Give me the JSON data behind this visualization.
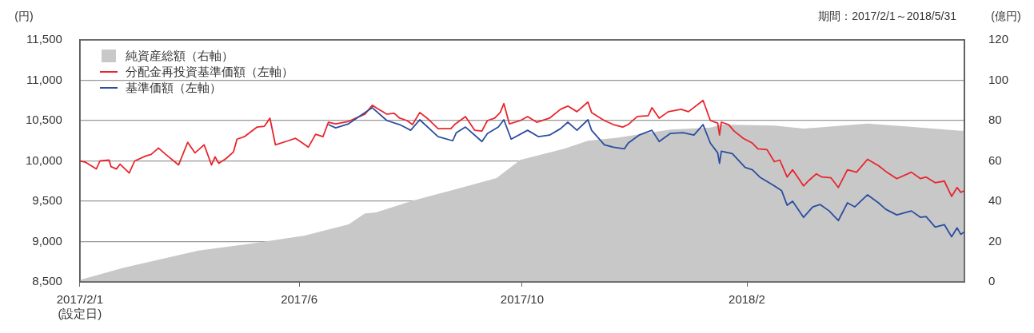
{
  "chart_data": {
    "type": "line",
    "ylabel": "(円)",
    "y2label": "(億円)",
    "annotations": [
      "期間：2017/2/1～2018/5/31"
    ],
    "xlim": [
      "2017-02-01",
      "2018-05-31"
    ],
    "xticks": [
      {
        "value": "2017-02-01",
        "label": "2017/2/1\n(設定日)"
      },
      {
        "value": "2017-06-01",
        "label": "2017/6"
      },
      {
        "value": "2017-10-01",
        "label": "2017/10"
      },
      {
        "value": "2018-02-01",
        "label": "2018/2"
      }
    ],
    "ylim": [
      8500,
      11500
    ],
    "yticks": [
      {
        "value": 8500,
        "label": "8,500"
      },
      {
        "value": 9000,
        "label": "9,000"
      },
      {
        "value": 9500,
        "label": "9,500"
      },
      {
        "value": 10000,
        "label": "10,000"
      },
      {
        "value": 10500,
        "label": "10,500"
      },
      {
        "value": 11000,
        "label": "11,000"
      },
      {
        "value": 11500,
        "label": "11,500"
      }
    ],
    "y2lim": [
      0,
      120
    ],
    "y2ticks": [
      0,
      20,
      40,
      60,
      80,
      100,
      120
    ],
    "grid": "y",
    "legend": "top left",
    "series": [
      {
        "name": "純資産総額（右軸）",
        "type": "area",
        "axis": "y2",
        "color": "#c8c8c8",
        "x": [
          "2017-02-01",
          "2017-02-25",
          "2017-04-07",
          "2017-05-06",
          "2017-06-04",
          "2017-06-28",
          "2017-07-07",
          "2017-07-13",
          "2017-08-03",
          "2017-08-26",
          "2017-09-17",
          "2017-09-30",
          "2017-10-24",
          "2017-11-06",
          "2017-11-22",
          "2017-12-21",
          "2018-01-12",
          "2018-01-18",
          "2018-02-16",
          "2018-03-04",
          "2018-04-08",
          "2018-04-30",
          "2018-05-29",
          "2018-05-31"
        ],
        "values": [
          1,
          7,
          15.5,
          19,
          23,
          28.5,
          34,
          34.5,
          40.5,
          46,
          51.5,
          60.5,
          66,
          70,
          71.5,
          75.5,
          76.5,
          78,
          77.5,
          76,
          78.5,
          77,
          75,
          75
        ]
      },
      {
        "name": "分配金再投資基準価額（左軸）",
        "color": "#e8262d",
        "x": [
          "2017-02-01",
          "2017-02-04",
          "2017-02-10",
          "2017-02-12",
          "2017-02-17",
          "2017-02-18",
          "2017-02-21",
          "2017-02-23",
          "2017-02-28",
          "2017-03-03",
          "2017-03-09",
          "2017-03-12",
          "2017-03-16",
          "2017-03-20",
          "2017-03-27",
          "2017-04-01",
          "2017-04-05",
          "2017-04-10",
          "2017-04-14",
          "2017-04-16",
          "2017-04-18",
          "2017-04-22",
          "2017-04-26",
          "2017-04-28",
          "2017-05-02",
          "2017-05-09",
          "2017-05-13",
          "2017-05-16",
          "2017-05-19",
          "2017-05-26",
          "2017-05-30",
          "2017-06-01",
          "2017-06-06",
          "2017-06-10",
          "2017-06-14",
          "2017-06-17",
          "2017-06-21",
          "2017-06-28",
          "2017-07-07",
          "2017-07-11",
          "2017-07-13",
          "2017-07-19",
          "2017-07-23",
          "2017-07-26",
          "2017-07-30",
          "2017-08-02",
          "2017-08-06",
          "2017-08-10",
          "2017-08-16",
          "2017-08-23",
          "2017-08-25",
          "2017-08-31",
          "2017-09-05",
          "2017-09-09",
          "2017-09-12",
          "2017-09-16",
          "2017-09-19",
          "2017-09-21",
          "2017-09-24",
          "2017-09-30",
          "2017-10-04",
          "2017-10-09",
          "2017-10-16",
          "2017-10-22",
          "2017-10-26",
          "2017-10-31",
          "2017-11-06",
          "2017-11-08",
          "2017-11-15",
          "2017-11-20",
          "2017-11-25",
          "2017-11-28",
          "2017-12-03",
          "2017-12-09",
          "2017-12-11",
          "2017-12-15",
          "2017-12-20",
          "2017-12-27",
          "2017-12-31",
          "2018-01-08",
          "2018-01-12",
          "2018-01-16",
          "2018-01-17",
          "2018-01-18",
          "2018-01-22",
          "2018-01-25",
          "2018-01-30",
          "2018-02-04",
          "2018-02-07",
          "2018-02-12",
          "2018-02-16",
          "2018-02-19",
          "2018-02-23",
          "2018-02-26",
          "2018-03-04",
          "2018-03-07",
          "2018-03-11",
          "2018-03-14",
          "2018-03-19",
          "2018-03-23",
          "2018-03-28",
          "2018-04-02",
          "2018-04-08",
          "2018-04-14",
          "2018-04-18",
          "2018-04-24",
          "2018-05-02",
          "2018-05-07",
          "2018-05-10",
          "2018-05-15",
          "2018-05-20",
          "2018-05-24",
          "2018-05-27",
          "2018-05-29",
          "2018-05-31"
        ],
        "values": [
          10000,
          9985,
          9900,
          10000,
          10010,
          9930,
          9900,
          9960,
          9850,
          10000,
          10060,
          10080,
          10160,
          10080,
          9950,
          10230,
          10100,
          10200,
          9950,
          10050,
          9970,
          10030,
          10110,
          10270,
          10300,
          10420,
          10430,
          10530,
          10200,
          10250,
          10280,
          10250,
          10170,
          10330,
          10300,
          10480,
          10460,
          10490,
          10580,
          10690,
          10660,
          10580,
          10590,
          10530,
          10500,
          10450,
          10600,
          10530,
          10400,
          10400,
          10450,
          10550,
          10380,
          10370,
          10500,
          10530,
          10600,
          10710,
          10460,
          10500,
          10550,
          10480,
          10530,
          10640,
          10680,
          10610,
          10730,
          10600,
          10500,
          10450,
          10420,
          10450,
          10550,
          10560,
          10660,
          10530,
          10610,
          10640,
          10610,
          10750,
          10500,
          10470,
          10320,
          10480,
          10450,
          10370,
          10280,
          10220,
          10150,
          10140,
          9990,
          10010,
          9800,
          9890,
          9690,
          9760,
          9840,
          9800,
          9790,
          9670,
          9890,
          9860,
          10020,
          9940,
          9870,
          9780,
          9860,
          9780,
          9800,
          9730,
          9750,
          9560,
          9670,
          9610,
          9630
        ]
      },
      {
        "name": "基準価額（左軸）",
        "color": "#2b4ea0",
        "x": [
          "2017-06-17",
          "2017-06-21",
          "2017-06-28",
          "2017-07-11",
          "2017-07-19",
          "2017-07-26",
          "2017-08-01",
          "2017-08-06",
          "2017-08-16",
          "2017-08-24",
          "2017-08-26",
          "2017-08-31",
          "2017-09-09",
          "2017-09-12",
          "2017-09-18",
          "2017-09-21",
          "2017-09-25",
          "2017-10-04",
          "2017-10-10",
          "2017-10-16",
          "2017-10-22",
          "2017-10-26",
          "2017-10-31",
          "2017-11-06",
          "2017-11-08",
          "2017-11-15",
          "2017-11-20",
          "2017-11-26",
          "2017-11-28",
          "2017-12-04",
          "2017-12-11",
          "2017-12-15",
          "2017-12-21",
          "2017-12-28",
          "2018-01-03",
          "2018-01-08",
          "2018-01-12",
          "2018-01-16",
          "2018-01-17",
          "2018-01-18",
          "2018-01-24",
          "2018-01-31",
          "2018-02-04",
          "2018-02-08",
          "2018-02-16",
          "2018-02-20",
          "2018-02-23",
          "2018-02-26",
          "2018-03-04",
          "2018-03-09",
          "2018-03-13",
          "2018-03-18",
          "2018-03-23",
          "2018-03-28",
          "2018-04-01",
          "2018-04-08",
          "2018-04-14",
          "2018-04-18",
          "2018-04-24",
          "2018-05-02",
          "2018-05-07",
          "2018-05-10",
          "2018-05-15",
          "2018-05-20",
          "2018-05-24",
          "2018-05-27",
          "2018-05-29",
          "2018-05-31"
        ],
        "values": [
          10450,
          10410,
          10460,
          10660,
          10500,
          10450,
          10380,
          10510,
          10300,
          10250,
          10350,
          10420,
          10240,
          10340,
          10420,
          10510,
          10270,
          10380,
          10300,
          10320,
          10400,
          10480,
          10380,
          10510,
          10380,
          10200,
          10170,
          10150,
          10220,
          10320,
          10380,
          10240,
          10340,
          10350,
          10320,
          10450,
          10220,
          10100,
          9970,
          10120,
          10090,
          9920,
          9890,
          9800,
          9690,
          9630,
          9450,
          9500,
          9300,
          9430,
          9460,
          9380,
          9260,
          9480,
          9430,
          9580,
          9480,
          9400,
          9330,
          9380,
          9300,
          9310,
          9180,
          9210,
          9060,
          9170,
          9090,
          9120
        ]
      }
    ]
  }
}
